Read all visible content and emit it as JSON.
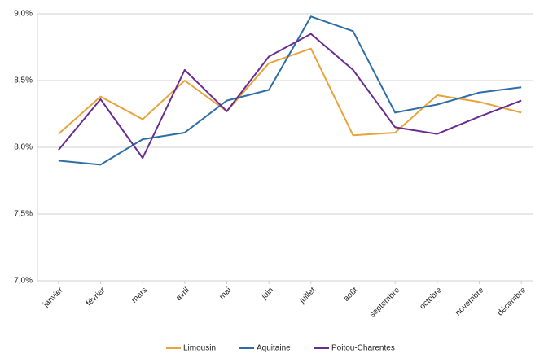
{
  "chart_data": {
    "type": "line",
    "categories": [
      "janvier",
      "février",
      "mars",
      "avril",
      "mai",
      "juin",
      "juillet",
      "août",
      "septembre",
      "octobre",
      "novembre",
      "décembre"
    ],
    "series": [
      {
        "name": "Limousin",
        "color": "#e8a33a",
        "values": [
          8.1,
          8.38,
          8.21,
          8.5,
          8.27,
          8.63,
          8.74,
          8.09,
          8.11,
          8.39,
          8.34,
          8.26
        ]
      },
      {
        "name": "Aquitaine",
        "color": "#2e6ea6",
        "values": [
          7.9,
          7.87,
          8.06,
          8.11,
          8.35,
          8.43,
          8.98,
          8.87,
          8.26,
          8.32,
          8.41,
          8.45
        ]
      },
      {
        "name": "Poitou-Charentes",
        "color": "#6a2c91",
        "values": [
          7.98,
          8.36,
          7.92,
          8.58,
          8.27,
          8.68,
          8.85,
          8.58,
          8.15,
          8.1,
          8.23,
          8.35
        ]
      }
    ],
    "ylim": [
      7.0,
      9.0
    ],
    "yticks": [
      {
        "value": 7.0,
        "label": "7,0%"
      },
      {
        "value": 7.5,
        "label": "7,5%"
      },
      {
        "value": 8.0,
        "label": "8,0%"
      },
      {
        "value": 8.5,
        "label": "8,5%"
      },
      {
        "value": 9.0,
        "label": "9,0%"
      }
    ],
    "grid": true,
    "legend": "bottom"
  }
}
